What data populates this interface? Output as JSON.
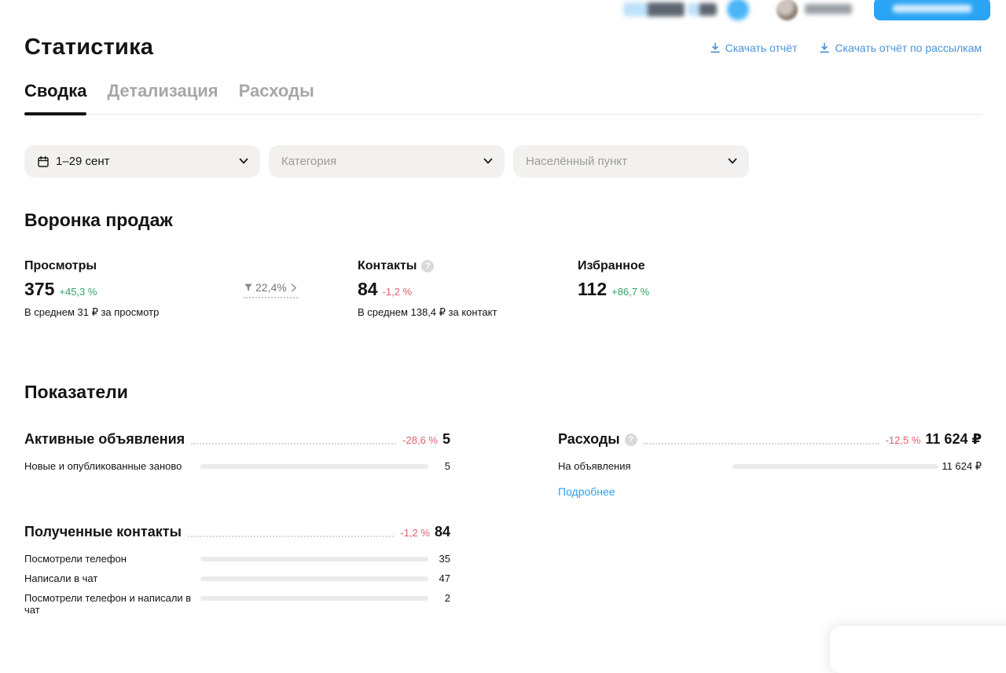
{
  "header": {
    "title": "Статистика",
    "download_report": "Скачать отчёт",
    "download_newsletter_report": "Скачать отчёт по рассылкам"
  },
  "tabs": [
    {
      "label": "Сводка",
      "active": true
    },
    {
      "label": "Детализация",
      "active": false
    },
    {
      "label": "Расходы",
      "active": false
    }
  ],
  "filters": {
    "date": {
      "value": "1–29 сент"
    },
    "category": {
      "placeholder": "Категория"
    },
    "location": {
      "placeholder": "Населённый пункт"
    }
  },
  "funnel": {
    "title": "Воронка продаж",
    "views": {
      "label": "Просмотры",
      "value": "375",
      "delta": "+45,3 %",
      "note": "В среднем 31 ₽ за просмотр"
    },
    "conversion": {
      "value": "22,4%"
    },
    "contacts": {
      "label": "Контакты",
      "value": "84",
      "delta": "-1,2 %",
      "note": "В среднем 138,4 ₽ за контакт"
    },
    "favorites": {
      "label": "Избранное",
      "value": "112",
      "delta": "+86,7 %"
    }
  },
  "indicators": {
    "title": "Показатели",
    "active_ads": {
      "title": "Активные объявления",
      "delta": "-28,6 %",
      "value": "5",
      "rows": [
        {
          "label": "Новые и опубликованные заново",
          "value": "5",
          "fill_pct": 100
        }
      ]
    },
    "expenses": {
      "title": "Расходы",
      "delta": "-12,5 %",
      "value": "11 624 ₽",
      "rows": [
        {
          "label": "На объявления",
          "value": "11 624 ₽",
          "fill_pct": 100
        }
      ],
      "more_label": "Подробнее"
    },
    "received_contacts": {
      "title": "Полученные контакты",
      "delta": "-1,2 %",
      "value": "84",
      "rows": [
        {
          "label": "Посмотрели телефон",
          "value": "35",
          "fill_pct": 41.7
        },
        {
          "label": "Написали в чат",
          "value": "47",
          "fill_pct": 56
        },
        {
          "label": "Посмотрели телефон и написали в чат",
          "value": "2",
          "fill_pct": 2.4
        }
      ]
    }
  },
  "colors": {
    "bar_blue": "#0f9bef",
    "positive_green": "#36a06b",
    "negative_red": "#df5e6d",
    "link_blue": "#4a92d6",
    "primary_button_blue": "#2aa4f4"
  }
}
